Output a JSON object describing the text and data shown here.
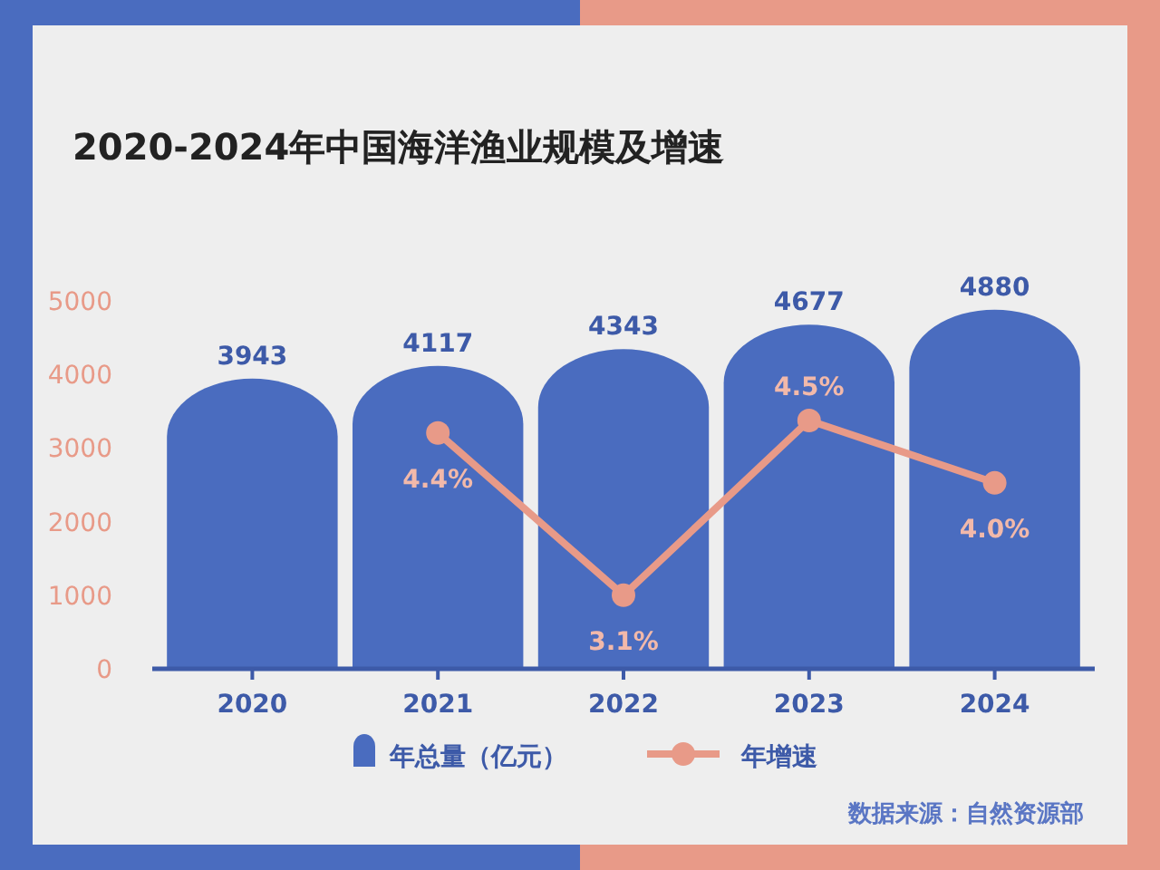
{
  "chart_data": {
    "type": "bar",
    "title": "2020-2024年中国海洋渔业规模及增速",
    "categories": [
      "2020",
      "2021",
      "2022",
      "2023",
      "2024"
    ],
    "series": [
      {
        "name": "年总量（亿元）",
        "color": "#4a6cbf",
        "values": [
          3943,
          4117,
          4343,
          4677,
          4880
        ]
      },
      {
        "name": "年增速",
        "type": "line",
        "axis": "y2",
        "color": "#e89a88",
        "marker": "circle",
        "values": [
          null,
          4.4,
          3.1,
          4.5,
          4.0
        ],
        "value_labels": [
          null,
          "4.4%",
          "3.1%",
          "4.5%",
          "4.0%"
        ]
      }
    ],
    "ylim": [
      0,
      5000
    ],
    "yticks": [
      0,
      1000,
      2000,
      3000,
      4000,
      5000
    ],
    "data_labels": true,
    "legend": "bottom",
    "annotations": [
      "数据来源：自然资源部"
    ]
  }
}
